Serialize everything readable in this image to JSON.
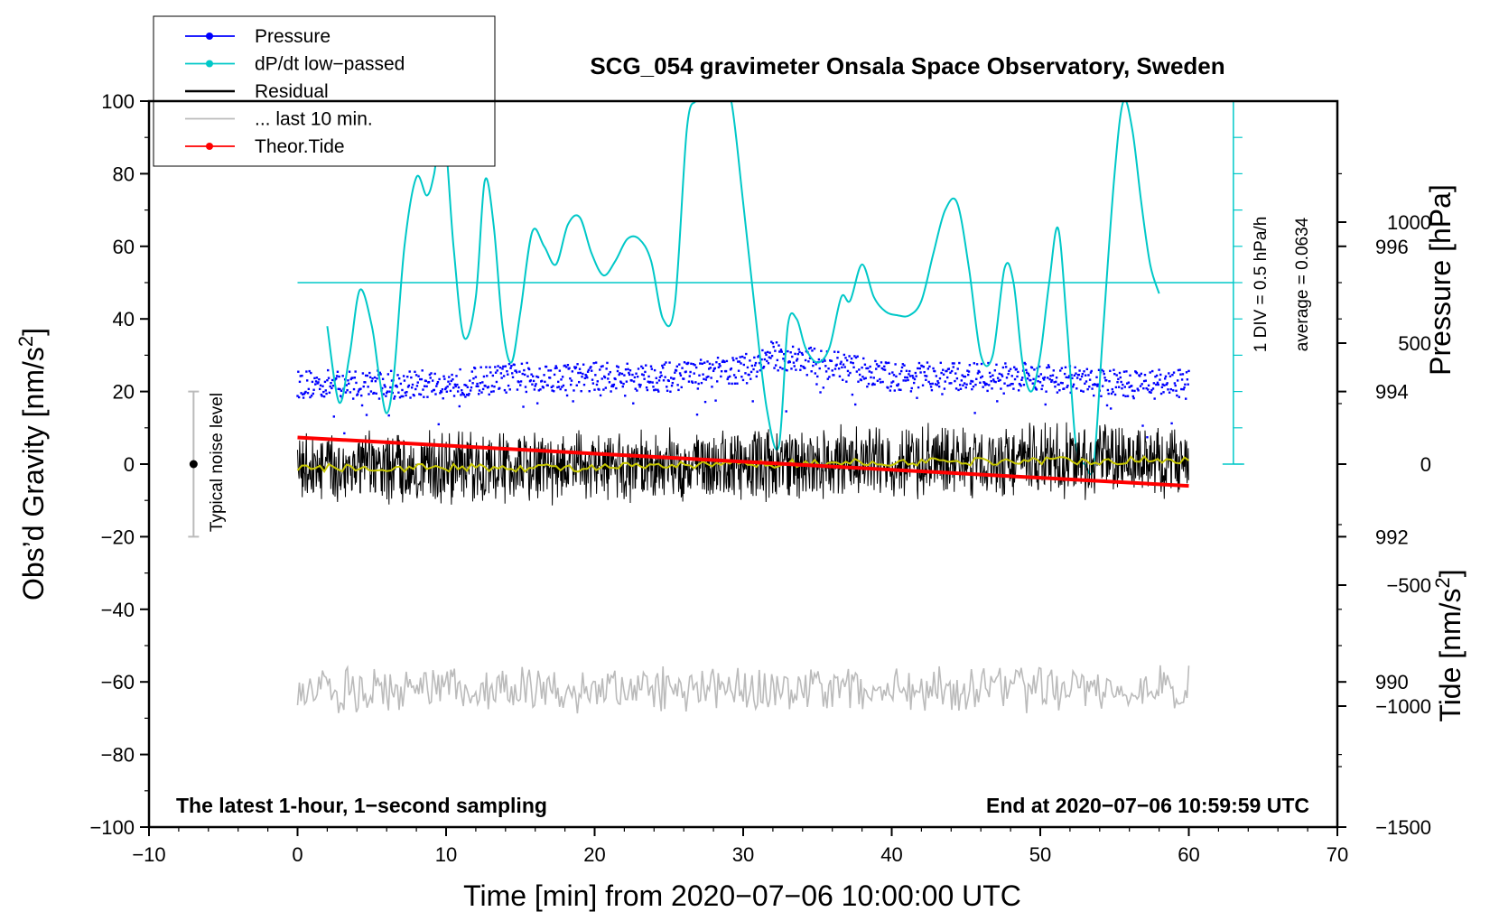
{
  "chart_data": {
    "type": "line",
    "title": "SCG_054 gravimeter Onsala Space Observatory, Sweden",
    "xlabel": "Time [min] from 2020−07−06 10:00:00 UTC",
    "ylabel_left": "Obs’d Gravity [nm/s",
    "ylabel_left_sup": "2",
    "ylabel_left_close": "]",
    "ylabel_right_pressure": "Pressure [hPa]",
    "ylabel_right_tide": "Tide [nm/s",
    "ylabel_right_tide_sup": "2",
    "ylabel_right_tide_close": "]",
    "xlim": [
      -10,
      70
    ],
    "ylim": [
      -100,
      100
    ],
    "pressure_lim": [
      988,
      998
    ],
    "tide_lim": [
      -1500,
      1500
    ],
    "x_ticks": [
      "−10",
      "0",
      "10",
      "20",
      "30",
      "40",
      "50",
      "60",
      "70"
    ],
    "y_ticks": [
      "100",
      "80",
      "60",
      "40",
      "20",
      "0",
      "−20",
      "−40",
      "−60",
      "−80",
      "−100"
    ],
    "pressure_ticks": [
      "996",
      "994",
      "992",
      "990"
    ],
    "tide_ticks": [
      "1000",
      "500",
      "0",
      "−500",
      "−1000",
      "−1500"
    ],
    "bottom_left_note": "The latest 1-hour, 1−second sampling",
    "bottom_right_note": "End at 2020−07−06 10:59:59 UTC",
    "noise_label": "Typical noise level",
    "noise_bar": {
      "x": -7,
      "center": 0,
      "half_range": 20
    },
    "dpdt_scale_label": "1 DIV = 0.5 hPa/h",
    "dpdt_average_label": "average = 0.0634",
    "dpdt_zero_level": 50,
    "legend": [
      {
        "label": "Pressure",
        "color": "#0000ff",
        "marker": true
      },
      {
        "label": "dP/dt low−passed",
        "color": "#00c8c8",
        "marker": true
      },
      {
        "label": "Residual",
        "color": "#000000",
        "marker": false
      },
      {
        "label": "... last 10 min.",
        "color": "#bbbbbb",
        "marker": false
      },
      {
        "label": "Theor.Tide",
        "color": "#ff0000",
        "marker": true
      }
    ],
    "series": [
      {
        "name": "Pressure",
        "color": "#0000ff",
        "axis": "pressure",
        "kind": "dots",
        "x": [
          0,
          5,
          10,
          15,
          20,
          25,
          30,
          32,
          35,
          40,
          45,
          50,
          55,
          60
        ],
        "values": [
          994.1,
          994.1,
          994.1,
          994.2,
          994.2,
          994.2,
          994.3,
          994.5,
          994.4,
          994.2,
          994.2,
          994.2,
          994.1,
          994.1
        ]
      },
      {
        "name": "dP/dt low-passed",
        "color": "#00c8c8",
        "axis": "gravity",
        "kind": "line",
        "x": [
          2,
          2.8,
          3.5,
          4.2,
          5,
          5.5,
          6,
          6.5,
          7.2,
          8,
          8.7,
          9.2,
          9.8,
          10.5,
          11.2,
          12,
          12.6,
          13.2,
          13.8,
          14.4,
          15,
          15.8,
          16.6,
          17.4,
          18.2,
          19,
          19.8,
          20.6,
          21.4,
          22.2,
          23,
          23.8,
          24.6,
          25.4,
          26.2,
          26.8,
          27.4,
          28,
          28.6,
          29.2,
          30,
          30.8,
          31.6,
          32.4,
          33,
          33.6,
          34.2,
          35,
          35.8,
          36.6,
          37.2,
          38,
          38.8,
          39.6,
          40.4,
          41.2,
          42,
          42.8,
          43.6,
          44.4,
          45.2,
          46,
          46.8,
          47.6,
          48.2,
          48.8,
          49.4,
          50,
          50.6,
          51.2,
          51.8,
          52.4,
          53,
          53.6,
          54.2,
          55,
          55.6,
          56.2,
          56.8,
          57.4,
          58
        ],
        "values": [
          38,
          17,
          30,
          48,
          38,
          24,
          14,
          25,
          60,
          79,
          74,
          80,
          95,
          60,
          35,
          46,
          78,
          66,
          38,
          28,
          42,
          64,
          60,
          55,
          66,
          68,
          58,
          52,
          56,
          62,
          62,
          56,
          40,
          44,
          92,
          100,
          100,
          100,
          100,
          100,
          72,
          42,
          15,
          5,
          38,
          40,
          32,
          28,
          32,
          46,
          45,
          55,
          46,
          42,
          41,
          41,
          45,
          58,
          70,
          72,
          54,
          30,
          30,
          54,
          50,
          28,
          20,
          30,
          50,
          65,
          38,
          5,
          0,
          0,
          35,
          80,
          100,
          92,
          72,
          55,
          47
        ]
      },
      {
        "name": "Residual",
        "color": "#000000",
        "axis": "gravity",
        "kind": "noise",
        "x": [
          0,
          10,
          20,
          30,
          40,
          50,
          60
        ],
        "values": [
          -1,
          -1,
          -1,
          0,
          0.5,
          1,
          1
        ],
        "amplitude": 11
      },
      {
        "name": "Residual smoothed",
        "color": "#c8c800",
        "axis": "gravity",
        "kind": "line",
        "x": [
          0,
          10,
          20,
          30,
          40,
          50,
          60
        ],
        "values": [
          -1,
          -1,
          -1,
          0,
          0.5,
          1,
          1
        ]
      },
      {
        "name": "... last 10 min.",
        "color": "#bbbbbb",
        "axis": "gravity",
        "kind": "noise",
        "x": [
          0,
          10,
          20,
          30,
          40,
          50,
          60
        ],
        "values": [
          -62,
          -62,
          -62,
          -62,
          -62,
          -62,
          -62
        ],
        "amplitude": 7
      },
      {
        "name": "Theor.Tide",
        "color": "#ff0000",
        "axis": "tide",
        "kind": "line",
        "x": [
          0,
          60
        ],
        "values": [
          110,
          -90
        ]
      }
    ]
  }
}
